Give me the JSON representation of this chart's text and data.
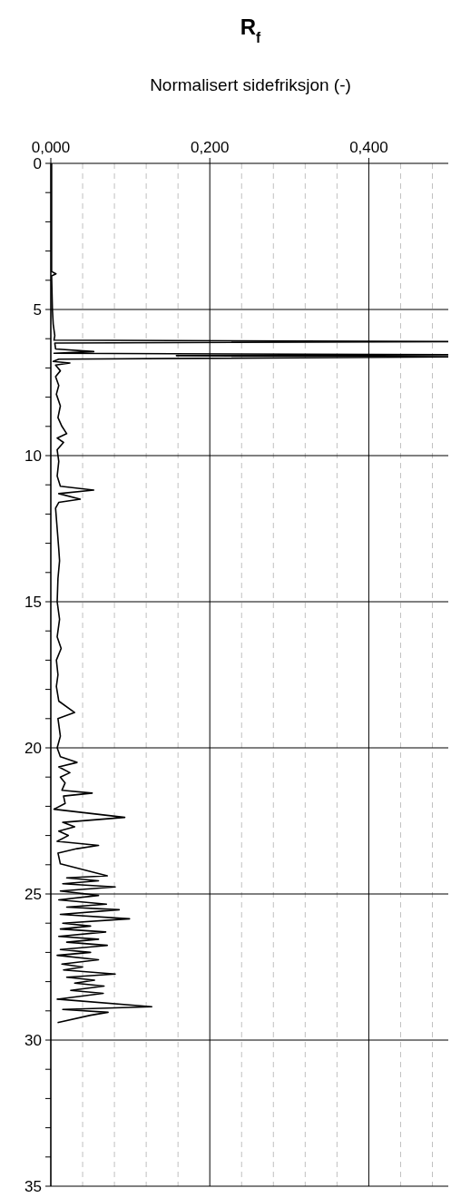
{
  "chart_data": {
    "type": "line",
    "title": "R$_{f}$",
    "xlabel": "Normalisert sidefriksjon (-)",
    "xlim": [
      0,
      0.5
    ],
    "xticks": [
      {
        "value": 0,
        "label": "0,000"
      },
      {
        "value": 0.04,
        "label": null
      },
      {
        "value": 0.08,
        "label": null
      },
      {
        "value": 0.12,
        "label": null
      },
      {
        "value": 0.16,
        "label": null
      },
      {
        "value": 0.2,
        "label": "0,200"
      },
      {
        "value": 0.24,
        "label": null
      },
      {
        "value": 0.28,
        "label": null
      },
      {
        "value": 0.32,
        "label": null
      },
      {
        "value": 0.36,
        "label": null
      },
      {
        "value": 0.4,
        "label": "0,400"
      },
      {
        "value": 0.44,
        "label": null
      },
      {
        "value": 0.48,
        "label": null
      }
    ],
    "ylim": [
      35,
      0
    ],
    "yticks": [
      0,
      {
        "value": 1,
        "label": null
      },
      {
        "value": 2,
        "label": null
      },
      {
        "value": 3,
        "label": null
      },
      {
        "value": 4,
        "label": null
      },
      5,
      {
        "value": 6,
        "label": null
      },
      {
        "value": 7,
        "label": null
      },
      {
        "value": 8,
        "label": null
      },
      {
        "value": 9,
        "label": null
      },
      10,
      {
        "value": 11,
        "label": null
      },
      {
        "value": 12,
        "label": null
      },
      {
        "value": 13,
        "label": null
      },
      {
        "value": 14,
        "label": null
      },
      15,
      {
        "value": 16,
        "label": null
      },
      {
        "value": 17,
        "label": null
      },
      {
        "value": 18,
        "label": null
      },
      {
        "value": 19,
        "label": null
      },
      20,
      {
        "value": 21,
        "label": null
      },
      {
        "value": 22,
        "label": null
      },
      {
        "value": 23,
        "label": null
      },
      {
        "value": 24,
        "label": null
      },
      25,
      {
        "value": 26,
        "label": null
      },
      {
        "value": 27,
        "label": null
      },
      {
        "value": 28,
        "label": null
      },
      {
        "value": 29,
        "label": null
      },
      30,
      {
        "value": 31,
        "label": null
      },
      {
        "value": 32,
        "label": null
      },
      {
        "value": 33,
        "label": null
      },
      {
        "value": 34,
        "label": null
      },
      35
    ],
    "grid": true,
    "line_style": "solid",
    "marker": "none",
    "series": [
      {
        "color": "#000000",
        "x": [
          0.001,
          0.001,
          0.0065,
          0.001,
          0.002,
          0.003,
          0.005,
          0.004,
          0.5,
          0.005,
          0.006,
          0.054,
          0.004,
          0.5,
          0.158,
          0.5,
          0.01,
          0.003,
          0.024,
          0.006,
          0.012,
          0.006,
          0.01,
          0.007,
          0.012,
          0.009,
          0.014,
          0.02,
          0.008,
          0.016,
          0.008,
          0.01,
          0.008,
          0.012,
          0.054,
          0.01,
          0.037,
          0.01,
          0.006,
          0.008,
          0.01,
          0.011,
          0.009,
          0.008,
          0.011,
          0.008,
          0.013,
          0.007,
          0.009,
          0.007,
          0.01,
          0.03,
          0.009,
          0.012,
          0.008,
          0.012,
          0.033,
          0.01,
          0.024,
          0.012,
          0.018,
          0.014,
          0.052,
          0.016,
          0.018,
          0.004,
          0.093,
          0.015,
          0.03,
          0.01,
          0.022,
          0.008,
          0.06,
          0.033,
          0.009,
          0.012,
          0.071,
          0.02,
          0.06,
          0.015,
          0.081,
          0.012,
          0.06,
          0.01,
          0.07,
          0.02,
          0.086,
          0.012,
          0.099,
          0.015,
          0.05,
          0.012,
          0.069,
          0.01,
          0.06,
          0.02,
          0.071,
          0.012,
          0.05,
          0.008,
          0.06,
          0.014,
          0.04,
          0.016,
          0.081,
          0.02,
          0.055,
          0.03,
          0.067,
          0.025,
          0.066,
          0.008,
          0.127,
          0.015,
          0.072,
          0.05,
          0.0085
        ],
        "values": [
          0,
          3.7,
          3.78,
          3.85,
          5.0,
          5.5,
          5.9,
          6.05,
          6.1,
          6.15,
          6.35,
          6.44,
          6.5,
          6.55,
          6.58,
          6.62,
          6.7,
          6.78,
          6.83,
          6.9,
          7.1,
          7.3,
          7.6,
          7.9,
          8.3,
          8.7,
          9.0,
          9.25,
          9.4,
          9.55,
          9.8,
          10.2,
          10.7,
          11.05,
          11.18,
          11.3,
          11.49,
          11.6,
          11.8,
          12.5,
          13.2,
          13.6,
          14.2,
          15.0,
          15.6,
          16.2,
          16.6,
          17.0,
          17.5,
          17.9,
          18.4,
          18.79,
          19.0,
          19.6,
          20.0,
          20.3,
          20.5,
          20.65,
          20.85,
          21.0,
          21.2,
          21.45,
          21.55,
          21.65,
          21.9,
          22.1,
          22.38,
          22.55,
          22.7,
          22.85,
          23.0,
          23.2,
          23.34,
          23.45,
          23.6,
          23.97,
          24.38,
          24.45,
          24.55,
          24.65,
          24.76,
          24.9,
          25.05,
          25.2,
          25.35,
          25.45,
          25.54,
          25.7,
          25.85,
          26.0,
          26.1,
          26.2,
          26.3,
          26.45,
          26.55,
          26.65,
          26.76,
          26.9,
          27.0,
          27.1,
          27.25,
          27.4,
          27.5,
          27.6,
          27.74,
          27.85,
          27.95,
          28.05,
          28.15,
          28.3,
          28.4,
          28.6,
          28.86,
          28.95,
          29.05,
          29.15,
          29.4
        ]
      }
    ]
  }
}
